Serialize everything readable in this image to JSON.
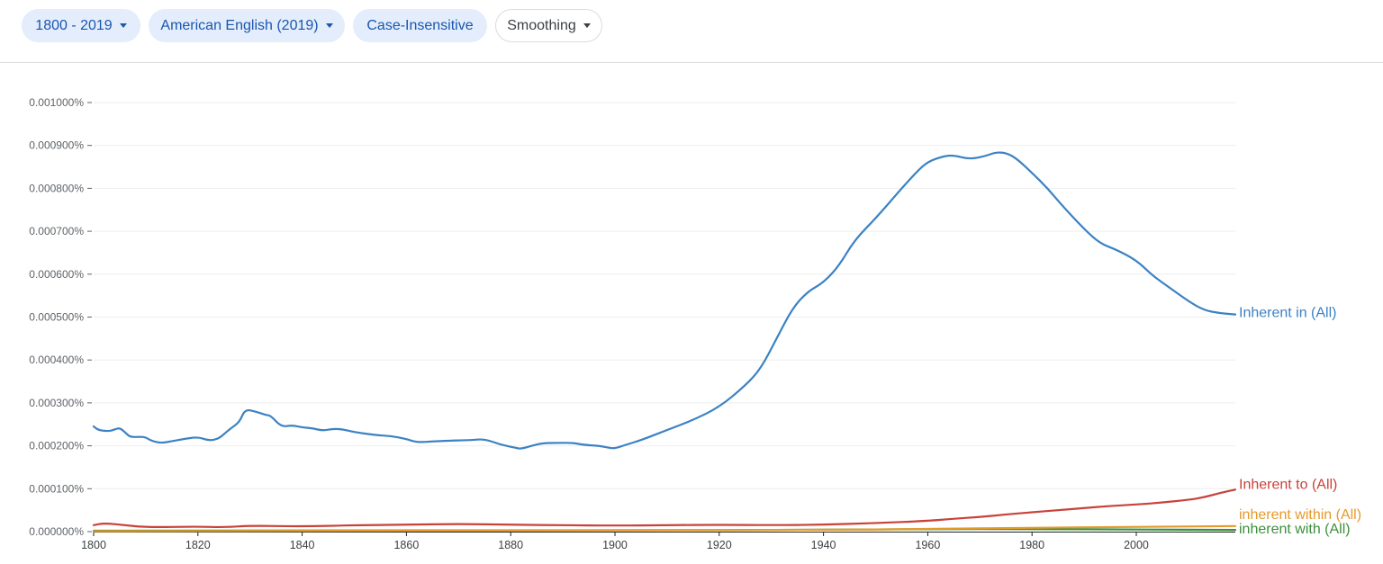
{
  "toolbar": {
    "year_range": "1800 - 2019",
    "corpus": "American English (2019)",
    "case": "Case-Insensitive",
    "smoothing": "Smoothing"
  },
  "icons": {
    "dropdown": "caret-down-icon"
  },
  "chart_data": {
    "type": "line",
    "title": "",
    "xlabel": "",
    "ylabel": "",
    "xlim": [
      1800,
      2019
    ],
    "ylim": [
      0,
      0.001
    ],
    "y_unit": "%",
    "x_ticks": [
      1800,
      1820,
      1840,
      1860,
      1880,
      1900,
      1920,
      1940,
      1960,
      1980,
      2000
    ],
    "x_tick_labels": [
      "1800",
      "1820",
      "1840",
      "1860",
      "1880",
      "1900",
      "1920",
      "1940",
      "1960",
      "1980",
      "2000"
    ],
    "y_ticks": [
      0,
      0.0001,
      0.0002,
      0.0003,
      0.0004,
      0.0005,
      0.0006,
      0.0007,
      0.0008,
      0.0009,
      0.001
    ],
    "y_tick_labels": [
      "0.000000%",
      "0.000100%",
      "0.000200%",
      "0.000300%",
      "0.000400%",
      "0.000500%",
      "0.000600%",
      "0.000700%",
      "0.000800%",
      "0.000900%",
      "0.001000%"
    ],
    "grid": true,
    "legend": "inline-right",
    "series": [
      {
        "name": "Inherent in (All)",
        "color": "#3b82c4",
        "points": [
          [
            1800,
            0.000245
          ],
          [
            1801,
            0.000236
          ],
          [
            1803,
            0.000234
          ],
          [
            1804,
            0.000238
          ],
          [
            1805,
            0.000242
          ],
          [
            1806,
            0.000232
          ],
          [
            1807,
            0.00022
          ],
          [
            1809,
            0.000221
          ],
          [
            1810,
            0.00022
          ],
          [
            1811,
            0.000212
          ],
          [
            1813,
            0.000206
          ],
          [
            1815,
            0.000211
          ],
          [
            1817,
            0.000215
          ],
          [
            1820,
            0.000221
          ],
          [
            1822,
            0.000212
          ],
          [
            1824,
            0.000216
          ],
          [
            1826,
            0.000238
          ],
          [
            1828,
            0.000255
          ],
          [
            1829,
            0.000285
          ],
          [
            1831,
            0.00028
          ],
          [
            1833,
            0.000272
          ],
          [
            1834,
            0.00027
          ],
          [
            1836,
            0.000244
          ],
          [
            1838,
            0.000248
          ],
          [
            1840,
            0.000243
          ],
          [
            1842,
            0.000241
          ],
          [
            1844,
            0.000235
          ],
          [
            1846,
            0.00024
          ],
          [
            1848,
            0.000238
          ],
          [
            1850,
            0.000232
          ],
          [
            1854,
            0.000225
          ],
          [
            1857,
            0.000223
          ],
          [
            1860,
            0.000216
          ],
          [
            1862,
            0.000208
          ],
          [
            1865,
            0.00021
          ],
          [
            1868,
            0.000212
          ],
          [
            1872,
            0.000213
          ],
          [
            1875,
            0.000216
          ],
          [
            1878,
            0.000203
          ],
          [
            1881,
            0.000195
          ],
          [
            1882,
            0.000193
          ],
          [
            1884,
            0.0002
          ],
          [
            1886,
            0.000206
          ],
          [
            1889,
            0.000207
          ],
          [
            1892,
            0.000207
          ],
          [
            1894,
            0.000202
          ],
          [
            1897,
            0.0002
          ],
          [
            1899,
            0.000195
          ],
          [
            1900,
            0.000194
          ],
          [
            1902,
            0.000202
          ],
          [
            1905,
            0.000213
          ],
          [
            1910,
            0.000237
          ],
          [
            1915,
            0.00026
          ],
          [
            1920,
            0.00029
          ],
          [
            1925,
            0.00034
          ],
          [
            1928,
            0.00038
          ],
          [
            1931,
            0.00045
          ],
          [
            1934,
            0.00052
          ],
          [
            1937,
            0.00056
          ],
          [
            1940,
            0.00058
          ],
          [
            1943,
            0.00062
          ],
          [
            1946,
            0.00068
          ],
          [
            1950,
            0.00073
          ],
          [
            1955,
            0.0008
          ],
          [
            1958,
            0.00084
          ],
          [
            1960,
            0.000862
          ],
          [
            1963,
            0.000875
          ],
          [
            1965,
            0.000877
          ],
          [
            1968,
            0.000868
          ],
          [
            1971,
            0.000875
          ],
          [
            1973,
            0.000884
          ],
          [
            1975,
            0.000883
          ],
          [
            1977,
            0.00087
          ],
          [
            1980,
            0.000836
          ],
          [
            1983,
            0.0008
          ],
          [
            1986,
            0.000757
          ],
          [
            1990,
            0.000705
          ],
          [
            1993,
            0.000672
          ],
          [
            1996,
            0.000658
          ],
          [
            2000,
            0.000633
          ],
          [
            2003,
            0.000598
          ],
          [
            2006,
            0.000572
          ],
          [
            2010,
            0.000537
          ],
          [
            2013,
            0.000516
          ],
          [
            2016,
            0.000509
          ],
          [
            2019,
            0.000506
          ]
        ]
      },
      {
        "name": "Inherent to (All)",
        "color": "#c8423a",
        "points": [
          [
            1800,
            1.5e-05
          ],
          [
            1802,
            2e-05
          ],
          [
            1806,
            1.5e-05
          ],
          [
            1810,
            1e-05
          ],
          [
            1820,
            1.2e-05
          ],
          [
            1825,
            1e-05
          ],
          [
            1830,
            1.4e-05
          ],
          [
            1840,
            1.2e-05
          ],
          [
            1850,
            1.5e-05
          ],
          [
            1860,
            1.6e-05
          ],
          [
            1870,
            1.8e-05
          ],
          [
            1880,
            1.6e-05
          ],
          [
            1890,
            1.5e-05
          ],
          [
            1900,
            1.4e-05
          ],
          [
            1910,
            1.5e-05
          ],
          [
            1920,
            1.6e-05
          ],
          [
            1930,
            1.5e-05
          ],
          [
            1940,
            1.6e-05
          ],
          [
            1950,
            2e-05
          ],
          [
            1960,
            2.5e-05
          ],
          [
            1965,
            3e-05
          ],
          [
            1970,
            3.4e-05
          ],
          [
            1975,
            4e-05
          ],
          [
            1980,
            4.5e-05
          ],
          [
            1985,
            5e-05
          ],
          [
            1990,
            5.5e-05
          ],
          [
            1995,
            6e-05
          ],
          [
            2000,
            6.3e-05
          ],
          [
            2005,
            6.8e-05
          ],
          [
            2010,
            7.4e-05
          ],
          [
            2013,
            8e-05
          ],
          [
            2016,
            9e-05
          ],
          [
            2019,
            9.8e-05
          ]
        ]
      },
      {
        "name": "inherent within (All)",
        "color": "#e59a2d",
        "points": [
          [
            1800,
            1e-06
          ],
          [
            1850,
            2e-06
          ],
          [
            1900,
            3e-06
          ],
          [
            1940,
            4e-06
          ],
          [
            1960,
            6e-06
          ],
          [
            1980,
            9e-06
          ],
          [
            2000,
            1.1e-05
          ],
          [
            2019,
            1.3e-05
          ]
        ]
      },
      {
        "name": "inherent with (All)",
        "color": "#3c8f3c",
        "points": [
          [
            1800,
            2e-06
          ],
          [
            1850,
            3e-06
          ],
          [
            1900,
            3e-06
          ],
          [
            1940,
            4e-06
          ],
          [
            1960,
            6e-06
          ],
          [
            1980,
            6e-06
          ],
          [
            2000,
            5e-06
          ],
          [
            2019,
            4e-06
          ]
        ]
      }
    ]
  }
}
